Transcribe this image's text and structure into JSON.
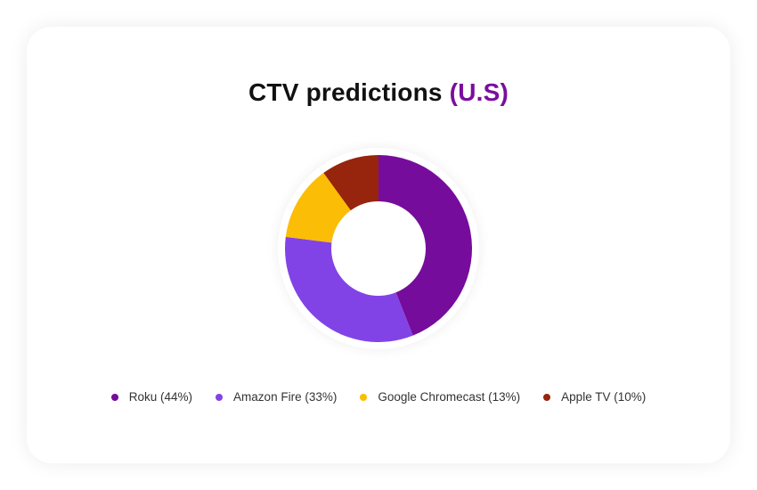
{
  "title": {
    "main": "CTV predictions ",
    "accent": "(U.S)",
    "accent_color": "#7a0e9e"
  },
  "chart_data": {
    "type": "pie",
    "subtype": "donut",
    "title": "CTV predictions (U.S)",
    "categories": [
      "Roku",
      "Amazon Fire",
      "Google Chromecast",
      "Apple TV"
    ],
    "values": [
      44,
      33,
      13,
      10
    ],
    "unit": "%",
    "colors": [
      "#760c9b",
      "#8243e6",
      "#fbbd05",
      "#97240c"
    ],
    "start_angle": "12 o'clock, clockwise",
    "legend_position": "bottom",
    "legend_labels": [
      "Roku (44%)",
      "Amazon Fire (33%)",
      "Google Chromecast (13%)",
      "Apple TV (10%)"
    ]
  },
  "legend": [
    {
      "label": "Roku (44%)",
      "color": "#760c9b"
    },
    {
      "label": "Amazon Fire (33%)",
      "color": "#8243e6"
    },
    {
      "label": "Google Chromecast (13%)",
      "color": "#fbbd05"
    },
    {
      "label": "Apple TV (10%)",
      "color": "#97240c"
    }
  ]
}
